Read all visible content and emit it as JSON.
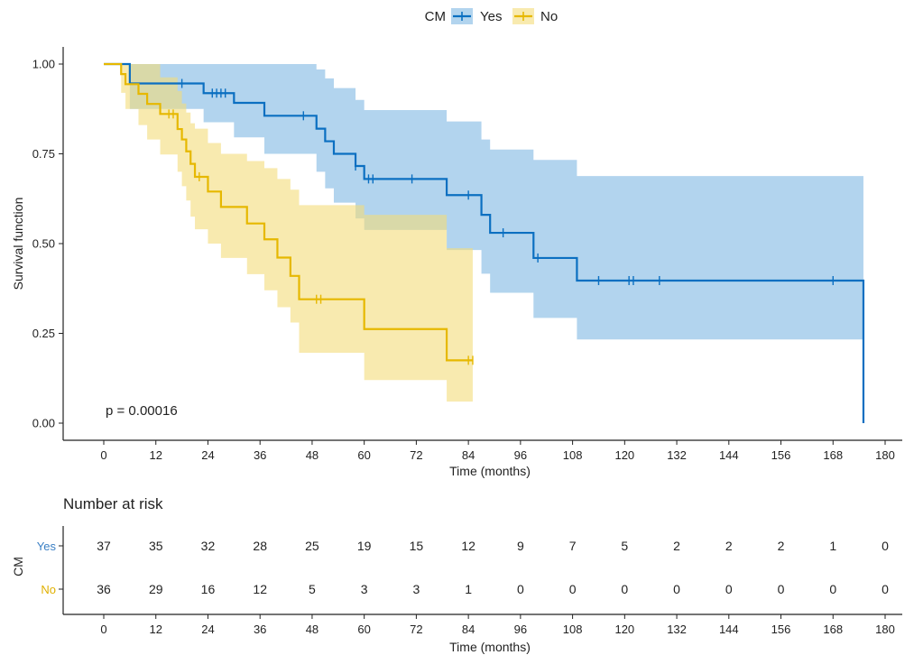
{
  "chart_data": {
    "type": "line",
    "title": "",
    "legend": {
      "title": "CM",
      "placement": "top",
      "entries": [
        "Yes",
        "No"
      ]
    },
    "xlabel": "Time (months)",
    "ylabel": "Survival function",
    "xlim": [
      0,
      180
    ],
    "ylim": [
      0,
      1
    ],
    "xticks": [
      0,
      12,
      24,
      36,
      48,
      60,
      72,
      84,
      96,
      108,
      120,
      132,
      144,
      156,
      168,
      180
    ],
    "yticks": [
      0,
      0.25,
      0.5,
      0.75,
      1
    ],
    "ytick_labels": [
      "0.00",
      "0.25",
      "0.50",
      "0.75",
      "1.00"
    ],
    "annotation": "p = 0.00016",
    "grid": false,
    "series": [
      {
        "name": "Yes",
        "color": "#0b6fc1",
        "band_color": "#7fb8e2",
        "steps": [
          [
            0,
            1.0
          ],
          [
            6,
            0.946
          ],
          [
            23,
            0.919
          ],
          [
            30,
            0.892
          ],
          [
            37,
            0.856
          ],
          [
            49,
            0.82
          ],
          [
            51,
            0.785
          ],
          [
            53,
            0.75
          ],
          [
            58,
            0.716
          ],
          [
            60,
            0.68
          ],
          [
            79,
            0.635
          ],
          [
            87,
            0.58
          ],
          [
            89,
            0.53
          ],
          [
            99,
            0.46
          ],
          [
            109,
            0.397
          ],
          [
            175,
            0.0
          ]
        ],
        "end": 175,
        "lower": [
          [
            0,
            1.0
          ],
          [
            6,
            0.875
          ],
          [
            23,
            0.838
          ],
          [
            30,
            0.796
          ],
          [
            37,
            0.75
          ],
          [
            49,
            0.7
          ],
          [
            51,
            0.654
          ],
          [
            53,
            0.614
          ],
          [
            58,
            0.57
          ],
          [
            60,
            0.538
          ],
          [
            79,
            0.482
          ],
          [
            87,
            0.416
          ],
          [
            89,
            0.363
          ],
          [
            99,
            0.293
          ],
          [
            109,
            0.233
          ],
          [
            175,
            0.233
          ]
        ],
        "upper": [
          [
            0,
            1.0
          ],
          [
            6,
            1.0
          ],
          [
            23,
            1.0
          ],
          [
            30,
            1.0
          ],
          [
            37,
            1.0
          ],
          [
            49,
            0.985
          ],
          [
            51,
            0.96
          ],
          [
            53,
            0.933
          ],
          [
            58,
            0.9
          ],
          [
            60,
            0.872
          ],
          [
            79,
            0.84
          ],
          [
            87,
            0.79
          ],
          [
            89,
            0.762
          ],
          [
            99,
            0.733
          ],
          [
            109,
            0.688
          ],
          [
            175,
            0.688
          ]
        ],
        "censor_times": [
          18,
          25,
          26,
          27,
          28,
          46,
          58,
          61,
          62,
          71,
          84,
          92,
          100,
          114,
          121,
          122,
          128,
          168
        ]
      },
      {
        "name": "No",
        "color": "#e6b800",
        "band_color": "#f3dc7a",
        "steps": [
          [
            0,
            1.0
          ],
          [
            4,
            0.972
          ],
          [
            5,
            0.944
          ],
          [
            8,
            0.917
          ],
          [
            10,
            0.889
          ],
          [
            13,
            0.861
          ],
          [
            17,
            0.819
          ],
          [
            18,
            0.79
          ],
          [
            19,
            0.757
          ],
          [
            20,
            0.722
          ],
          [
            21,
            0.686
          ],
          [
            24,
            0.645
          ],
          [
            27,
            0.602
          ],
          [
            33,
            0.556
          ],
          [
            37,
            0.512
          ],
          [
            40,
            0.461
          ],
          [
            43,
            0.41
          ],
          [
            45,
            0.345
          ],
          [
            60,
            0.262
          ],
          [
            79,
            0.175
          ],
          [
            85,
            0.175
          ]
        ],
        "end": 85,
        "lower": [
          [
            0,
            1.0
          ],
          [
            4,
            0.92
          ],
          [
            5,
            0.875
          ],
          [
            8,
            0.83
          ],
          [
            10,
            0.79
          ],
          [
            13,
            0.748
          ],
          [
            17,
            0.7
          ],
          [
            18,
            0.66
          ],
          [
            19,
            0.62
          ],
          [
            20,
            0.575
          ],
          [
            21,
            0.54
          ],
          [
            24,
            0.5
          ],
          [
            27,
            0.46
          ],
          [
            33,
            0.415
          ],
          [
            37,
            0.37
          ],
          [
            40,
            0.323
          ],
          [
            43,
            0.28
          ],
          [
            45,
            0.196
          ],
          [
            60,
            0.12
          ],
          [
            79,
            0.06
          ],
          [
            85,
            0.06
          ]
        ],
        "upper": [
          [
            0,
            1.0
          ],
          [
            4,
            1.0
          ],
          [
            5,
            1.0
          ],
          [
            8,
            1.0
          ],
          [
            10,
            1.0
          ],
          [
            13,
            0.963
          ],
          [
            17,
            0.925
          ],
          [
            18,
            0.89
          ],
          [
            19,
            0.865
          ],
          [
            20,
            0.835
          ],
          [
            21,
            0.82
          ],
          [
            24,
            0.78
          ],
          [
            27,
            0.75
          ],
          [
            33,
            0.73
          ],
          [
            37,
            0.71
          ],
          [
            40,
            0.68
          ],
          [
            43,
            0.65
          ],
          [
            45,
            0.607
          ],
          [
            60,
            0.58
          ],
          [
            79,
            0.487
          ],
          [
            85,
            0.487
          ]
        ],
        "censor_times": [
          15,
          16,
          22,
          49,
          50,
          84,
          85
        ]
      }
    ]
  },
  "risk_table": {
    "title": "Number at risk",
    "ylabel": "CM",
    "xlabel": "Time (months)",
    "times": [
      0,
      12,
      24,
      36,
      48,
      60,
      72,
      84,
      96,
      108,
      120,
      132,
      144,
      156,
      168,
      180
    ],
    "rows": [
      {
        "name": "Yes",
        "color": "#3a7fc4",
        "counts": [
          37,
          35,
          32,
          28,
          25,
          19,
          15,
          12,
          9,
          7,
          5,
          2,
          2,
          2,
          1,
          0
        ]
      },
      {
        "name": "No",
        "color": "#e0b000",
        "counts": [
          36,
          29,
          16,
          12,
          5,
          3,
          3,
          1,
          0,
          0,
          0,
          0,
          0,
          0,
          0,
          0
        ]
      }
    ]
  }
}
